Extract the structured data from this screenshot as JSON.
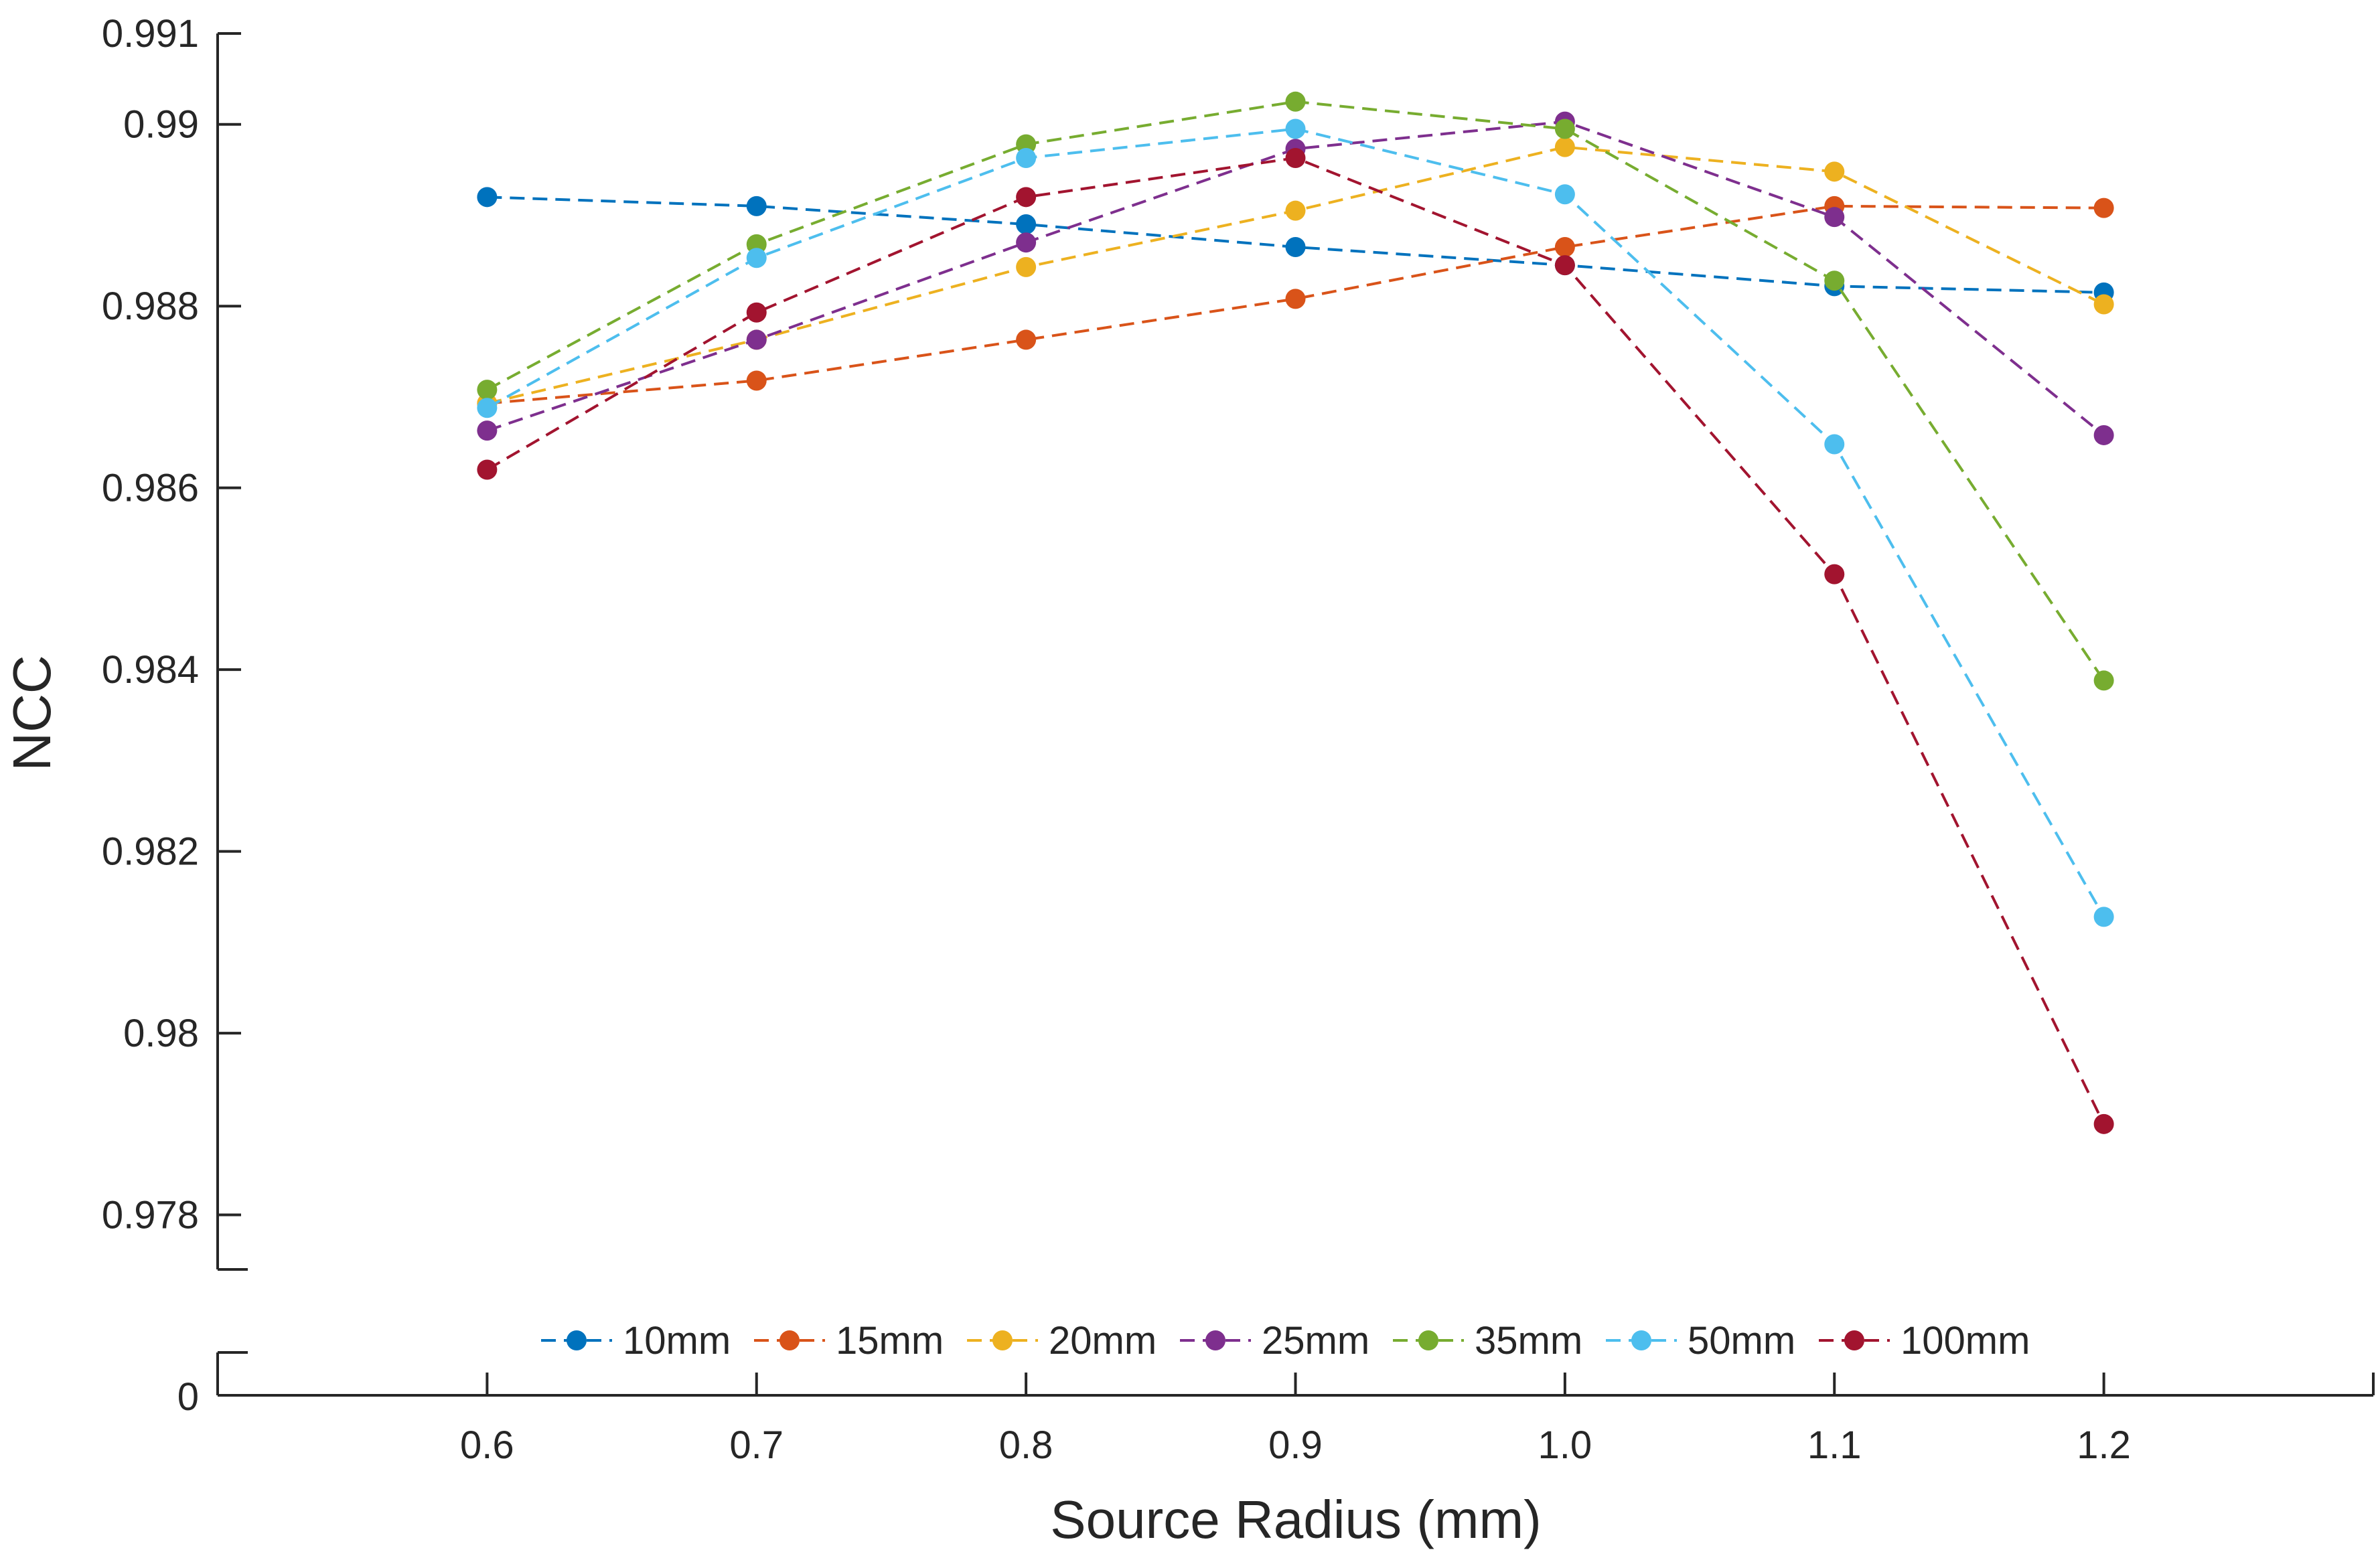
{
  "chart_data": {
    "type": "line",
    "title": "",
    "xlabel": "Source Radius (mm)",
    "ylabel": "NCC",
    "x": [
      0.6,
      0.7,
      0.8,
      0.9,
      1.0,
      1.1,
      1.2
    ],
    "x_tick_labels": [
      "0.6",
      "0.7",
      "0.8",
      "0.9",
      "1.0",
      "1.1",
      "1.2"
    ],
    "xlim": [
      0.5,
      1.3
    ],
    "ylim": [
      0.9774,
      0.991
    ],
    "y_ticks": [
      0.978,
      0.98,
      0.982,
      0.984,
      0.986,
      0.988,
      0.99,
      0.991
    ],
    "y_tick_labels": [
      "0.978",
      "0.98",
      "0.982",
      "0.984",
      "0.986",
      "0.988",
      "0.99",
      "0.991"
    ],
    "y_broken_axis": true,
    "y_zero_label": "0",
    "grid": false,
    "legend_position": "bottom-center",
    "series": [
      {
        "name": "10mm",
        "color": "#0072BD",
        "values": [
          0.9892,
          0.9891,
          0.9889,
          0.98865,
          0.98845,
          0.98822,
          0.98815
        ]
      },
      {
        "name": "15mm",
        "color": "#D95319",
        "values": [
          0.98693,
          0.98718,
          0.98763,
          0.98808,
          0.98865,
          0.9891,
          0.98908
        ]
      },
      {
        "name": "20mm",
        "color": "#EDB120",
        "values": [
          0.98693,
          0.98763,
          0.98843,
          0.98905,
          0.98975,
          0.98948,
          0.98802
        ]
      },
      {
        "name": "25mm",
        "color": "#7E2F8E",
        "values": [
          0.98663,
          0.98763,
          0.9887,
          0.98973,
          0.99003,
          0.98898,
          0.98658
        ]
      },
      {
        "name": "35mm",
        "color": "#77AC30",
        "values": [
          0.98708,
          0.98868,
          0.98978,
          0.99025,
          0.98995,
          0.98828,
          0.98388
        ]
      },
      {
        "name": "50mm",
        "color": "#4DBEEE",
        "values": [
          0.98688,
          0.98853,
          0.98963,
          0.98995,
          0.98923,
          0.98648,
          0.98128
        ]
      },
      {
        "name": "100mm",
        "color": "#A2142F",
        "values": [
          0.9862,
          0.98793,
          0.9892,
          0.98963,
          0.98845,
          0.98505,
          0.979
        ]
      }
    ]
  }
}
